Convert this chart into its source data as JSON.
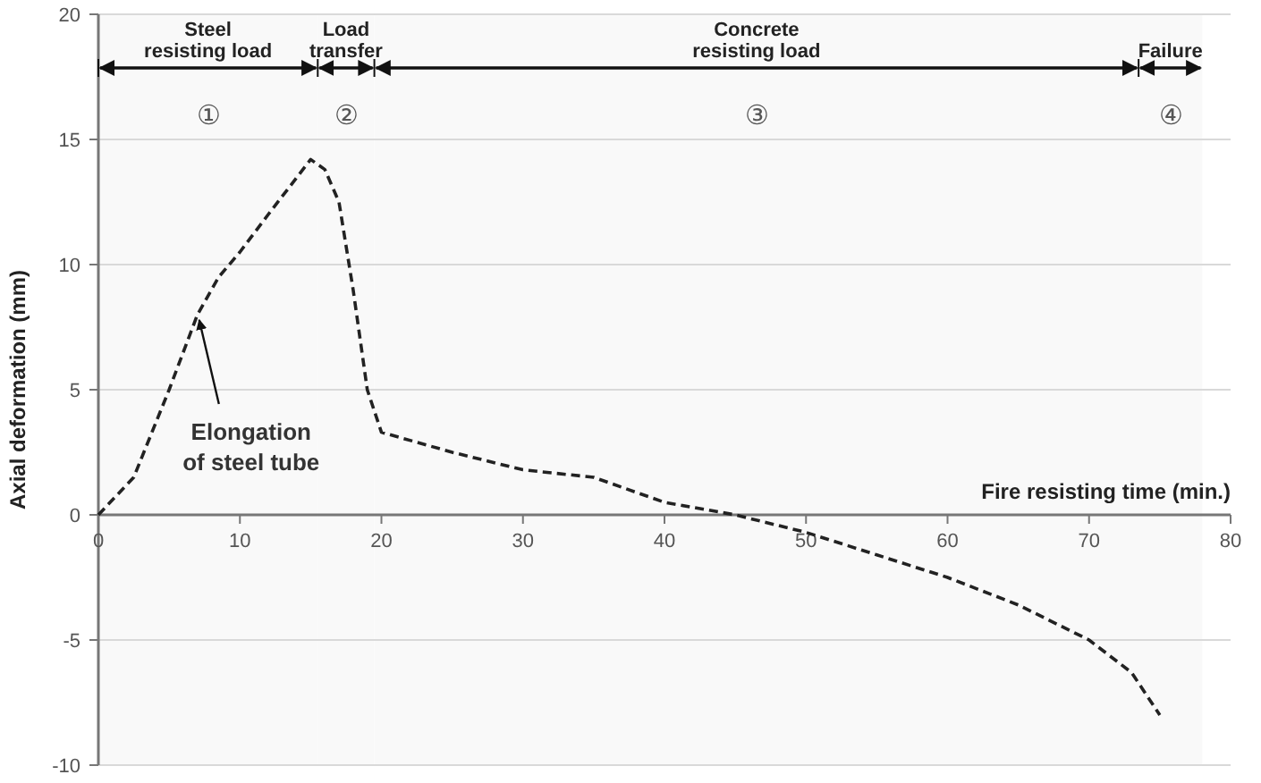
{
  "chart_data": {
    "type": "line",
    "xlabel": "Fire resisting time (min.)",
    "ylabel": "Axial deformation (mm)",
    "x": [
      0,
      2.5,
      5,
      7,
      8.5,
      10,
      12,
      15,
      16,
      17,
      18,
      19,
      20,
      25,
      30,
      35,
      40,
      45,
      50,
      55,
      60,
      65,
      70,
      73,
      75
    ],
    "series": [
      {
        "color": "#222222",
        "values": [
          0,
          1.5,
          5,
          8,
          9.5,
          10.5,
          12,
          14.2,
          13.8,
          12.5,
          9,
          5,
          3.3,
          2.5,
          1.8,
          1.5,
          0.5,
          0,
          -0.7,
          -1.6,
          -2.5,
          -3.6,
          -5,
          -6.3,
          -8
        ]
      }
    ],
    "line_style": "dashed",
    "marker": "none",
    "grid": "y",
    "xlim": [
      0,
      80
    ],
    "ylim": [
      -10,
      20
    ],
    "xticks": [
      0,
      10,
      20,
      30,
      40,
      50,
      60,
      70,
      80
    ],
    "yticks": [
      -10,
      -5,
      0,
      5,
      10,
      15,
      20
    ],
    "bands": [
      {
        "axis": "x",
        "from": 0,
        "to": 15.5,
        "label": "Steel\nresisting load",
        "color": "#f9f9f9"
      },
      {
        "axis": "x",
        "from": 15.5,
        "to": 19.5,
        "label": "Load\ntransfer",
        "color": "#f9f9f9"
      },
      {
        "axis": "x",
        "from": 19.5,
        "to": 73.5,
        "label": "Concrete\nresisting load",
        "color": "#f9f9f9"
      },
      {
        "axis": "x",
        "from": 73.5,
        "to": 78,
        "label": "Failure",
        "color": "#f9f9f9"
      }
    ],
    "annotations": [
      "①",
      "②",
      "③",
      "④",
      {
        "text": "Elongation\nof steel tube",
        "x": 7,
        "y": 8
      }
    ]
  }
}
